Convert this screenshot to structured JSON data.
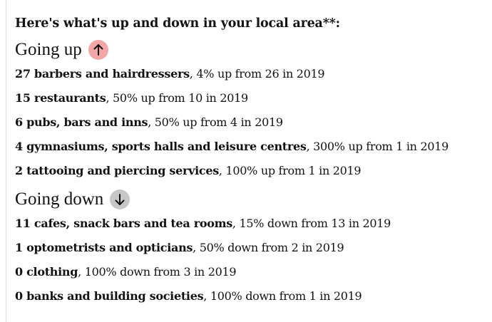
{
  "heading": "Here's what's up and down in your local area**:",
  "going_up": {
    "title": "Going up",
    "icon": "arrow-up-icon",
    "icon_color": "#f3a6a6",
    "items": [
      {
        "name": "27 barbers and hairdressers",
        "detail": ", 4% up from 26 in 2019"
      },
      {
        "name": "15 restaurants",
        "detail": ", 50% up from 10 in 2019"
      },
      {
        "name": "6 pubs, bars and inns",
        "detail": ", 50% up from 4 in 2019"
      },
      {
        "name": "4 gymnasiums, sports halls and leisure centres",
        "detail": ", 300% up from 1 in 2019"
      },
      {
        "name": "2 tattooing and piercing services",
        "detail": ", 100% up from 1 in 2019"
      }
    ]
  },
  "going_down": {
    "title": "Going down",
    "icon": "arrow-down-icon",
    "icon_color": "#c6c6c6",
    "items": [
      {
        "name": "11 cafes, snack bars and tea rooms",
        "detail": ", 15% down from 13 in 2019"
      },
      {
        "name": "1 optometrists and opticians",
        "detail": ", 50% down from 2 in 2019"
      },
      {
        "name": "0 clothing",
        "detail": ", 100% down from 3 in 2019"
      },
      {
        "name": "0 banks and building societies",
        "detail": ", 100% down from 1 in 2019"
      }
    ]
  }
}
